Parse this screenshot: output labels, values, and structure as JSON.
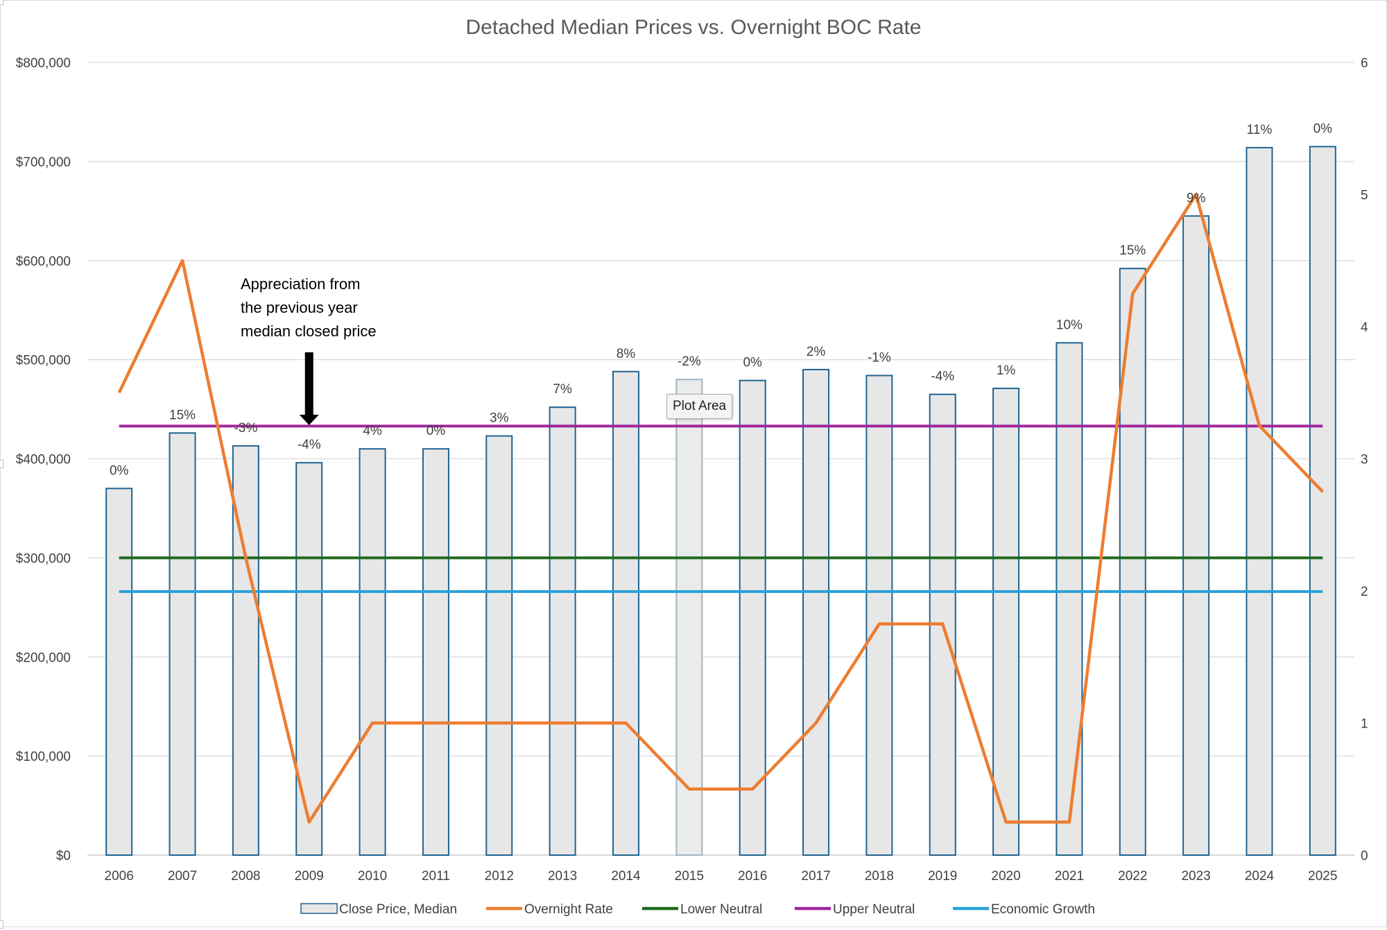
{
  "chart_data": {
    "type": "bar",
    "title": "Detached Median Prices vs. Overnight BOC Rate",
    "categories": [
      "2006",
      "2007",
      "2008",
      "2009",
      "2010",
      "2011",
      "2012",
      "2013",
      "2014",
      "2015",
      "2016",
      "2017",
      "2018",
      "2019",
      "2020",
      "2021",
      "2022",
      "2023",
      "2024",
      "2025"
    ],
    "series": [
      {
        "name": "Close Price, Median",
        "kind": "bar",
        "axis": "left",
        "values": [
          370000,
          426000,
          413000,
          396000,
          410000,
          410000,
          423000,
          452000,
          488000,
          480000,
          479000,
          490000,
          484000,
          465000,
          471000,
          517000,
          592000,
          645000,
          714000,
          715000
        ],
        "data_labels": [
          "0%",
          "15%",
          "-3%",
          "-4%",
          "4%",
          "0%",
          "3%",
          "7%",
          "8%",
          "-2%",
          "0%",
          "2%",
          "-1%",
          "-4%",
          "1%",
          "10%",
          "15%",
          "9%",
          "11%",
          "0%"
        ],
        "color": "#e7e7e7",
        "border_color": "#1f6391"
      },
      {
        "name": "Overnight Rate",
        "kind": "line",
        "axis": "right",
        "values": [
          3.5,
          4.5,
          2.25,
          0.25,
          1.0,
          1.0,
          1.0,
          1.0,
          1.0,
          0.5,
          0.5,
          1.0,
          1.75,
          1.75,
          0.25,
          0.25,
          4.25,
          5.0,
          3.25,
          2.75
        ],
        "color": "#ed7d31"
      },
      {
        "name": "Lower Neutral",
        "kind": "hline",
        "axis": "left",
        "value": 300000,
        "color": "#1e6b1e"
      },
      {
        "name": "Upper Neutral",
        "kind": "hline",
        "axis": "left",
        "value": 433000,
        "color": "#a0279b"
      },
      {
        "name": "Economic Growth",
        "kind": "hline",
        "axis": "left",
        "value": 266000,
        "color": "#2aa3d8"
      }
    ],
    "ylim": [
      0,
      800000
    ],
    "y_ticks": [
      "$0",
      "$100,000",
      "$200,000",
      "$300,000",
      "$400,000",
      "$500,000",
      "$600,000",
      "$700,000",
      "$800,000"
    ],
    "y2lim": [
      0,
      6
    ],
    "y2_ticks": [
      "0",
      "1",
      "2",
      "3",
      "4",
      "5",
      "6"
    ],
    "grid": true,
    "legend_position": "bottom",
    "annotation": {
      "lines": [
        "Appreciation from",
        "the previous year",
        "median closed price"
      ],
      "arrow_target_category": "2009"
    },
    "highlighted_category": "2015"
  },
  "tooltip": {
    "text": "Plot Area"
  }
}
